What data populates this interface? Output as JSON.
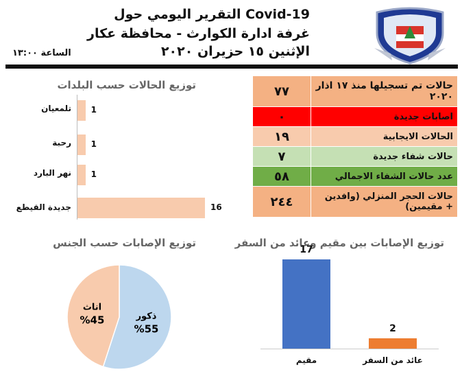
{
  "header": {
    "line1": "التقرير اليومي حول Covid-19",
    "line2": "غرفة ادارة الكوارث - محافظة عكار",
    "line3": "الإثنين ١٥ حزيران ٢٠٢٠",
    "time": "الساعة ١٣:٠٠"
  },
  "stats": [
    {
      "label": "حالات تم تسجيلها منذ ١٧ اذار ٢٠٢٠",
      "value": "٧٧",
      "bg": "#f4b183"
    },
    {
      "label": "اصابات جديدة",
      "value": "٠",
      "bg": "#ff0000"
    },
    {
      "label": "الحالات الايجابية",
      "value": "١٩",
      "bg": "#f8cbad"
    },
    {
      "label": "حالات شفاء جديدة",
      "value": "٧",
      "bg": "#c5e0b4"
    },
    {
      "label": "عدد حالات الشفاء الاجمالي",
      "value": "٥٨",
      "bg": "#70ad47"
    },
    {
      "label": "حالات الحجر المنزلي (وافدين + مقيمين)",
      "value": "٢٤٤",
      "bg": "#f4b183"
    }
  ],
  "colors": {
    "towns_bar": "#f8cbad",
    "resident_bar": "#4472c4",
    "travel_bar": "#ed7d31",
    "female_slice": "#f8cbad",
    "male_slice": "#bdd7ee"
  },
  "chart_data": [
    {
      "type": "bar",
      "orientation": "horizontal",
      "title": "توزيع الحالات حسب البلدات",
      "categories": [
        "تلمعيان",
        "رحبة",
        "نهر البارد",
        "جديدة القيطع"
      ],
      "values": [
        1,
        1,
        1,
        16
      ],
      "xlim": [
        0,
        16
      ]
    },
    {
      "type": "bar",
      "title": "توزيع الإصابات بين مقيم وعائد من السفر",
      "categories": [
        "مقيم",
        "عائد من السفر"
      ],
      "values": [
        17,
        2
      ],
      "ylim": [
        0,
        17
      ]
    },
    {
      "type": "pie",
      "title": "توزيع الإصابات حسب الجنس",
      "labels": [
        "ذكور",
        "اناث"
      ],
      "values": [
        55,
        45
      ],
      "value_labels": [
        "%55",
        "%45"
      ]
    }
  ]
}
